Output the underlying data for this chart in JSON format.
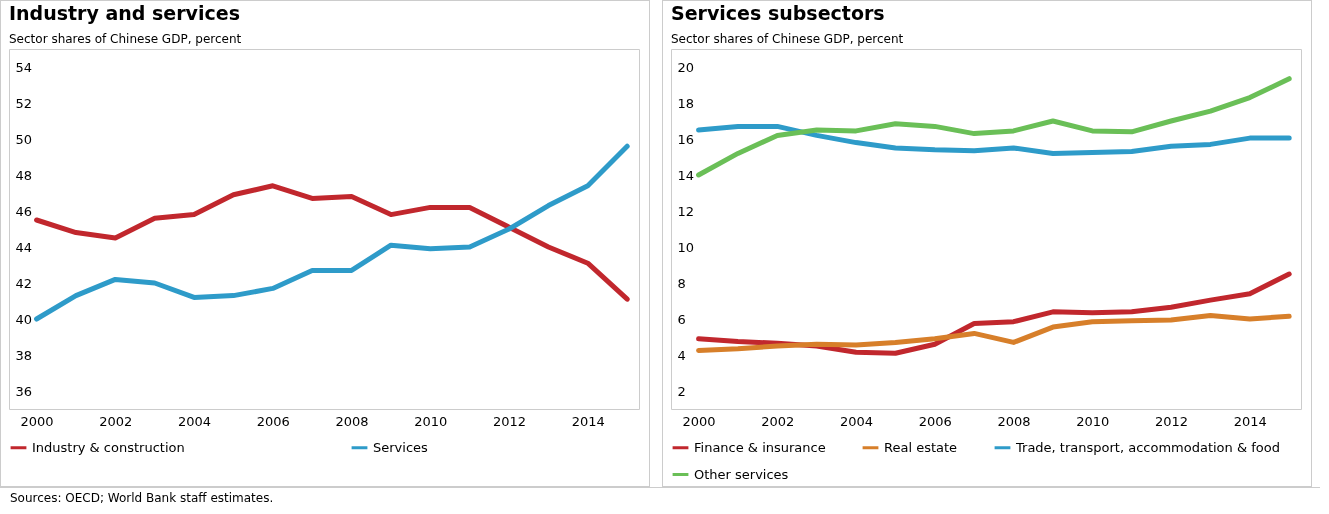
{
  "chart_data": [
    {
      "type": "line",
      "title": "Industry and services",
      "subtitle": "Sector shares of Chinese GDP, percent",
      "x": [
        2000,
        2001,
        2002,
        2003,
        2004,
        2005,
        2006,
        2007,
        2008,
        2009,
        2010,
        2011,
        2012,
        2013,
        2014,
        2015
      ],
      "xlim": [
        1999.3,
        2015.3
      ],
      "xticks": [
        2000,
        2002,
        2004,
        2006,
        2008,
        2010,
        2012,
        2014
      ],
      "ylim": [
        35,
        55
      ],
      "yticks": [
        36,
        38,
        40,
        42,
        44,
        46,
        48,
        50,
        52,
        54
      ],
      "legend": "bottom",
      "grid": false,
      "series": [
        {
          "name": "Industry & construction",
          "color": "#c1272d",
          "values": [
            45.5,
            44.8,
            44.5,
            45.6,
            45.8,
            46.9,
            47.4,
            46.7,
            46.8,
            45.8,
            46.2,
            46.2,
            45.1,
            44.0,
            43.1,
            41.1
          ]
        },
        {
          "name": "Services",
          "color": "#2e9bc9",
          "values": [
            40.0,
            41.3,
            42.2,
            42.0,
            41.2,
            41.3,
            41.7,
            42.7,
            42.7,
            44.1,
            43.9,
            44.0,
            45.0,
            46.3,
            47.4,
            49.6
          ]
        }
      ],
      "annotations": [
        "Sources: OECD; World Bank staff estimates."
      ]
    },
    {
      "type": "line",
      "title": "Services subsectors",
      "subtitle": "Sector shares of Chinese GDP, percent",
      "x": [
        2000,
        2001,
        2002,
        2003,
        2004,
        2005,
        2006,
        2007,
        2008,
        2009,
        2010,
        2011,
        2012,
        2013,
        2014,
        2015
      ],
      "xlim": [
        1999.3,
        2015.3
      ],
      "xticks": [
        2000,
        2002,
        2004,
        2006,
        2008,
        2010,
        2012,
        2014
      ],
      "ylim": [
        1,
        21
      ],
      "yticks": [
        2,
        4,
        6,
        8,
        10,
        12,
        14,
        16,
        18,
        20
      ],
      "legend": "bottom",
      "grid": false,
      "series": [
        {
          "name": "Finance & insurance",
          "color": "#c1272d",
          "values": [
            4.9,
            4.75,
            4.65,
            4.5,
            4.15,
            4.1,
            4.6,
            5.75,
            5.85,
            6.4,
            6.35,
            6.4,
            6.65,
            7.05,
            7.4,
            8.5
          ]
        },
        {
          "name": "Real estate",
          "color": "#d77f2a",
          "values": [
            4.25,
            4.35,
            4.5,
            4.6,
            4.55,
            4.7,
            4.9,
            5.2,
            4.7,
            5.55,
            5.85,
            5.9,
            5.95,
            6.2,
            6.0,
            6.15
          ]
        },
        {
          "name": "Trade, transport, accommodation & food",
          "color": "#2e9bc9",
          "values": [
            16.5,
            16.7,
            16.7,
            16.2,
            15.8,
            15.5,
            15.4,
            15.35,
            15.5,
            15.2,
            15.25,
            15.3,
            15.6,
            15.7,
            16.05,
            16.05
          ]
        },
        {
          "name": "Other services",
          "color": "#6abf57",
          "values": [
            14.0,
            15.2,
            16.2,
            16.5,
            16.45,
            16.85,
            16.7,
            16.3,
            16.45,
            17.0,
            16.45,
            16.4,
            17.0,
            17.55,
            18.3,
            19.35
          ]
        }
      ]
    }
  ]
}
